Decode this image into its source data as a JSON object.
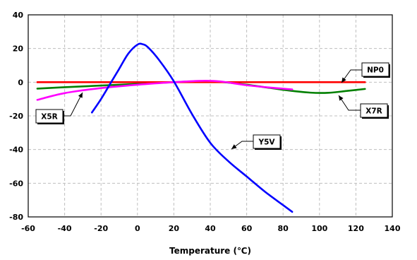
{
  "chart_data": {
    "type": "line",
    "title": "",
    "xlabel": "Temperature (℃)",
    "ylabel": "",
    "xlim": [
      -60,
      140
    ],
    "ylim": [
      -80,
      40
    ],
    "x_ticks": [
      "-60",
      "-40",
      "-20",
      "0",
      "20",
      "40",
      "60",
      "80",
      "100",
      "120",
      "140"
    ],
    "y_ticks": [
      "40",
      "20",
      "0",
      "-20",
      "-40",
      "-60",
      "-80"
    ],
    "grid": true,
    "series": [
      {
        "name": "NP0",
        "color": "#ff0000",
        "points": [
          [
            -55,
            0
          ],
          [
            -25,
            0
          ],
          [
            0,
            0
          ],
          [
            25,
            0
          ],
          [
            50,
            0
          ],
          [
            85,
            0
          ],
          [
            125,
            0
          ]
        ]
      },
      {
        "name": "X7R",
        "color": "#008000",
        "points": [
          [
            -55,
            -3.8
          ],
          [
            -40,
            -3
          ],
          [
            -20,
            -2
          ],
          [
            0,
            -1
          ],
          [
            20,
            0
          ],
          [
            40,
            0.6
          ],
          [
            60,
            -1.5
          ],
          [
            80,
            -4.5
          ],
          [
            95,
            -6.2
          ],
          [
            105,
            -6.3
          ],
          [
            115,
            -5.2
          ],
          [
            125,
            -4
          ]
        ]
      },
      {
        "name": "X5R",
        "color": "#ff00ff",
        "points": [
          [
            -55,
            -10.5
          ],
          [
            -40,
            -6.5
          ],
          [
            -20,
            -3.5
          ],
          [
            0,
            -1.5
          ],
          [
            20,
            0
          ],
          [
            35,
            0.8
          ],
          [
            45,
            0.5
          ],
          [
            60,
            -1.8
          ],
          [
            75,
            -3.4
          ],
          [
            85,
            -4.3
          ]
        ]
      },
      {
        "name": "Y5V",
        "color": "#0000ff",
        "points": [
          [
            -25,
            -18
          ],
          [
            -20,
            -10
          ],
          [
            -15,
            -1
          ],
          [
            -10,
            8
          ],
          [
            -5,
            17
          ],
          [
            0,
            22.3
          ],
          [
            3,
            22.5
          ],
          [
            6,
            20.5
          ],
          [
            12,
            13
          ],
          [
            20,
            0.5
          ],
          [
            30,
            -19
          ],
          [
            40,
            -36
          ],
          [
            50,
            -47
          ],
          [
            60,
            -56
          ],
          [
            70,
            -65
          ],
          [
            80,
            -73
          ],
          [
            85,
            -77
          ]
        ]
      }
    ],
    "annotations": [
      {
        "text": "NP0",
        "series": "NP0"
      },
      {
        "text": "X7R",
        "series": "X7R"
      },
      {
        "text": "X5R",
        "series": "X5R"
      },
      {
        "text": "Y5V",
        "series": "Y5V"
      }
    ]
  }
}
